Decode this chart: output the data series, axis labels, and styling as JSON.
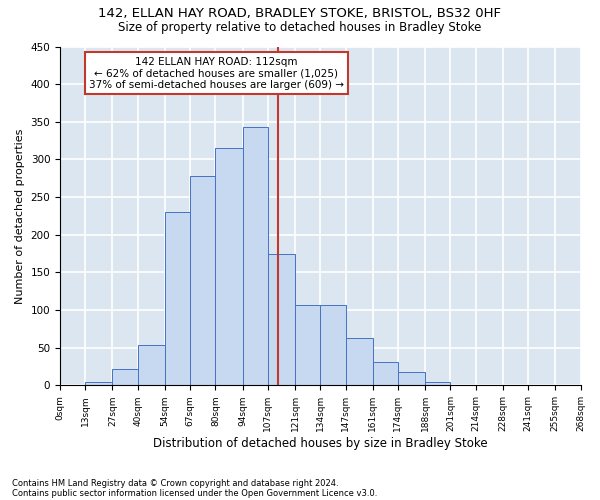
{
  "title1": "142, ELLAN HAY ROAD, BRADLEY STOKE, BRISTOL, BS32 0HF",
  "title2": "Size of property relative to detached houses in Bradley Stoke",
  "xlabel": "Distribution of detached houses by size in Bradley Stoke",
  "ylabel": "Number of detached properties",
  "annotation_line1": "142 ELLAN HAY ROAD: 112sqm",
  "annotation_line2": "← 62% of detached houses are smaller (1,025)",
  "annotation_line3": "37% of semi-detached houses are larger (609) →",
  "footer1": "Contains HM Land Registry data © Crown copyright and database right 2024.",
  "footer2": "Contains public sector information licensed under the Open Government Licence v3.0.",
  "bin_edges": [
    0,
    13,
    27,
    40,
    54,
    67,
    80,
    94,
    107,
    121,
    134,
    147,
    161,
    174,
    188,
    201,
    214,
    228,
    241,
    255,
    268
  ],
  "bar_heights": [
    0,
    5,
    22,
    53,
    230,
    278,
    315,
    343,
    175,
    107,
    107,
    63,
    31,
    18,
    5,
    1,
    0,
    0,
    0,
    0
  ],
  "bar_color": "#c6d9f0",
  "bar_edge_color": "#4472c4",
  "reference_line_x": 112,
  "reference_line_color": "#c0392b",
  "ylim": [
    0,
    450
  ],
  "yticks": [
    0,
    50,
    100,
    150,
    200,
    250,
    300,
    350,
    400,
    450
  ],
  "background_color": "#dce6f1",
  "grid_color": "#ffffff",
  "annotation_box_color": "#ffffff",
  "annotation_box_edge_color": "#c0392b",
  "title1_fontsize": 9.5,
  "title2_fontsize": 8.5,
  "xlabel_fontsize": 8.5,
  "ylabel_fontsize": 8
}
